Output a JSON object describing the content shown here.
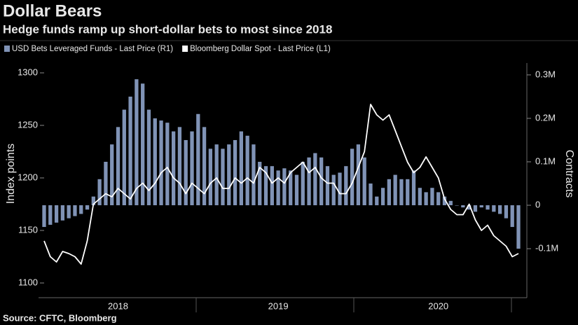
{
  "chart_data": {
    "type": "bar",
    "title": "Dollar Bears",
    "subtitle": "Hedge funds ramp up short-dollar bets to most since 2018",
    "ylabel": "Index points",
    "y2label": "Contracts",
    "source": "Source: CFTC, Bloomberg",
    "categories": [
      null,
      null,
      null,
      null,
      null,
      null,
      null,
      null,
      null,
      null,
      null,
      null,
      "2018",
      null,
      null,
      null,
      null,
      null,
      null,
      null,
      null,
      null,
      null,
      null,
      null,
      null,
      null,
      null,
      null,
      null,
      null,
      null,
      null,
      null,
      null,
      null,
      null,
      null,
      "2019",
      null,
      null,
      null,
      null,
      null,
      null,
      null,
      null,
      null,
      null,
      null,
      null,
      null,
      null,
      null,
      null,
      null,
      null,
      null,
      null,
      null,
      null,
      null,
      null,
      null,
      "2020",
      null,
      null,
      null,
      null,
      null,
      null,
      null,
      null,
      null,
      null,
      null,
      null,
      null
    ],
    "ylim": [
      1095,
      1315
    ],
    "yticks": [
      1100,
      1150,
      1200,
      1250,
      1300
    ],
    "y2lim": [
      -191000,
      341000
    ],
    "y2ticks": [
      {
        "value": -100000,
        "label": "-0.1M"
      },
      0,
      {
        "value": 100000,
        "label": "0.1M"
      },
      {
        "value": 200000,
        "label": "0.2M"
      },
      {
        "value": 300000,
        "label": "0.3M"
      }
    ],
    "series": [
      {
        "name": "USD Bets Leveraged Funds - Last Price (R1)",
        "type": "bar",
        "axis": "y2",
        "color": "#8093b6",
        "values": [
          -50000,
          -45000,
          -40000,
          -35000,
          -30000,
          -25000,
          -20000,
          -10000,
          20000,
          60000,
          100000,
          140000,
          180000,
          220000,
          250000,
          290000,
          280000,
          220000,
          200000,
          195000,
          190000,
          170000,
          180000,
          150000,
          170000,
          210000,
          180000,
          130000,
          140000,
          130000,
          140000,
          150000,
          170000,
          160000,
          140000,
          100000,
          90000,
          90000,
          80000,
          85000,
          80000,
          70000,
          100000,
          110000,
          120000,
          110000,
          90000,
          70000,
          75000,
          90000,
          130000,
          140000,
          110000,
          50000,
          20000,
          40000,
          60000,
          70000,
          60000,
          60000,
          80000,
          40000,
          30000,
          40000,
          30000,
          20000,
          10000,
          0,
          -5000,
          -10000,
          -15000,
          -5000,
          -10000,
          -15000,
          -20000,
          -30000,
          -50000,
          -100000
        ]
      },
      {
        "name": "Bloomberg Dollar Spot - Last Price (L1)",
        "type": "line",
        "axis": "y",
        "color": "#ffffff",
        "values": [
          1140,
          1125,
          1120,
          1130,
          1128,
          1125,
          1118,
          1140,
          1175,
          1180,
          1185,
          1182,
          1190,
          1185,
          1180,
          1190,
          1195,
          1188,
          1195,
          1205,
          1210,
          1200,
          1195,
          1185,
          1195,
          1190,
          1185,
          1195,
          1200,
          1190,
          1190,
          1200,
          1195,
          1200,
          1195,
          1210,
          1205,
          1195,
          1200,
          1195,
          1205,
          1210,
          1215,
          1205,
          1210,
          1200,
          1195,
          1195,
          1185,
          1185,
          1195,
          1210,
          1225,
          1270,
          1260,
          1255,
          1260,
          1245,
          1230,
          1215,
          1205,
          1210,
          1220,
          1210,
          1200,
          1180,
          1170,
          1165,
          1165,
          1175,
          1160,
          1150,
          1155,
          1145,
          1140,
          1135,
          1125,
          1128
        ]
      }
    ]
  }
}
